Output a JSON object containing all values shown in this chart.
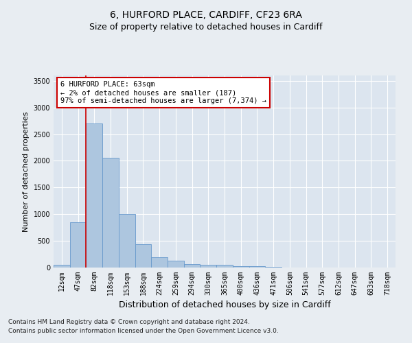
{
  "title": "6, HURFORD PLACE, CARDIFF, CF23 6RA",
  "subtitle": "Size of property relative to detached houses in Cardiff",
  "xlabel": "Distribution of detached houses by size in Cardiff",
  "ylabel": "Number of detached properties",
  "categories": [
    "12sqm",
    "47sqm",
    "82sqm",
    "118sqm",
    "153sqm",
    "188sqm",
    "224sqm",
    "259sqm",
    "294sqm",
    "330sqm",
    "365sqm",
    "400sqm",
    "436sqm",
    "471sqm",
    "506sqm",
    "541sqm",
    "577sqm",
    "612sqm",
    "647sqm",
    "683sqm",
    "718sqm"
  ],
  "bar_heights": [
    55,
    855,
    2700,
    2060,
    1000,
    440,
    195,
    130,
    65,
    55,
    50,
    30,
    20,
    10,
    5,
    3,
    2,
    1,
    1,
    1,
    0
  ],
  "bar_color": "#adc6df",
  "bar_edge_color": "#6699cc",
  "vline_color": "#cc0000",
  "annotation_box_text": "6 HURFORD PLACE: 63sqm\n← 2% of detached houses are smaller (187)\n97% of semi-detached houses are larger (7,374) →",
  "annotation_box_color": "#ffffff",
  "annotation_box_edge_color": "#cc0000",
  "ylim": [
    0,
    3600
  ],
  "yticks": [
    0,
    500,
    1000,
    1500,
    2000,
    2500,
    3000,
    3500
  ],
  "background_color": "#e8edf2",
  "plot_background": "#dce5ef",
  "grid_color": "#ffffff",
  "footer_line1": "Contains HM Land Registry data © Crown copyright and database right 2024.",
  "footer_line2": "Contains public sector information licensed under the Open Government Licence v3.0.",
  "title_fontsize": 10,
  "ylabel_fontsize": 8,
  "xlabel_fontsize": 9,
  "annotation_fontsize": 7.5,
  "footer_fontsize": 6.5,
  "tick_fontsize": 7
}
